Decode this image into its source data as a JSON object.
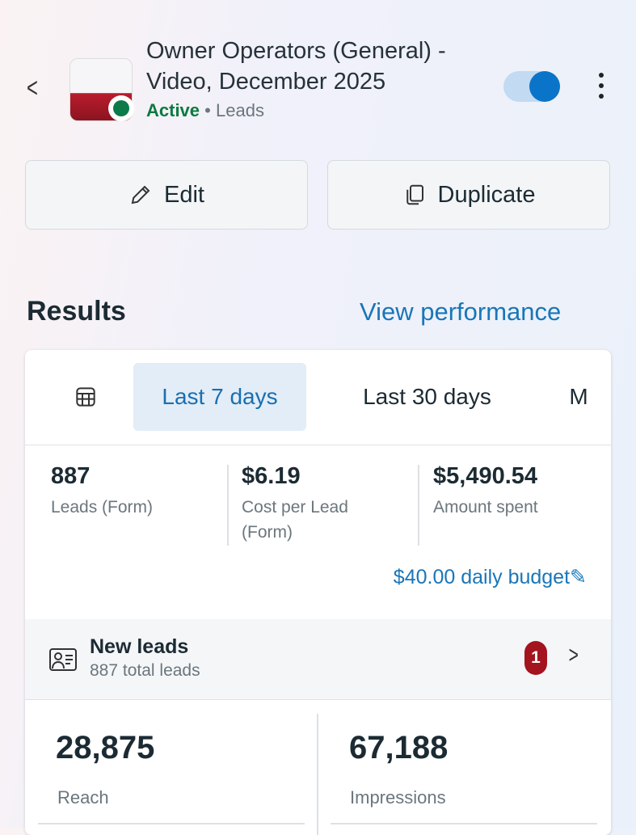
{
  "header": {
    "title": "Owner Operators (General) - Video, December 2025",
    "status": "Active",
    "separator": "•",
    "objective": "Leads",
    "toggle_on": true
  },
  "actions": {
    "edit": "Edit",
    "duplicate": "Duplicate"
  },
  "results": {
    "heading": "Results",
    "view_performance": "View performance"
  },
  "tabs": [
    {
      "label": "Last 7 days",
      "selected": true
    },
    {
      "label": "Last 30 days"
    },
    {
      "label": "M"
    }
  ],
  "stats": [
    {
      "value": "887",
      "label": "Leads (Form)"
    },
    {
      "value": "$6.19",
      "label": "Cost per Lead (Form)"
    },
    {
      "value": "$5,490.54",
      "label": "Amount spent"
    }
  ],
  "budget": "$40.00 daily budget",
  "new_leads": {
    "title": "New leads",
    "subtitle": "887 total leads",
    "badge": "1"
  },
  "metrics": [
    {
      "value": "28,875",
      "label": "Reach"
    },
    {
      "value": "67,188",
      "label": "Impressions"
    }
  ],
  "colors": {
    "accent": "#1a76b8",
    "active": "#0b7a3f",
    "badge": "#a3141e"
  }
}
